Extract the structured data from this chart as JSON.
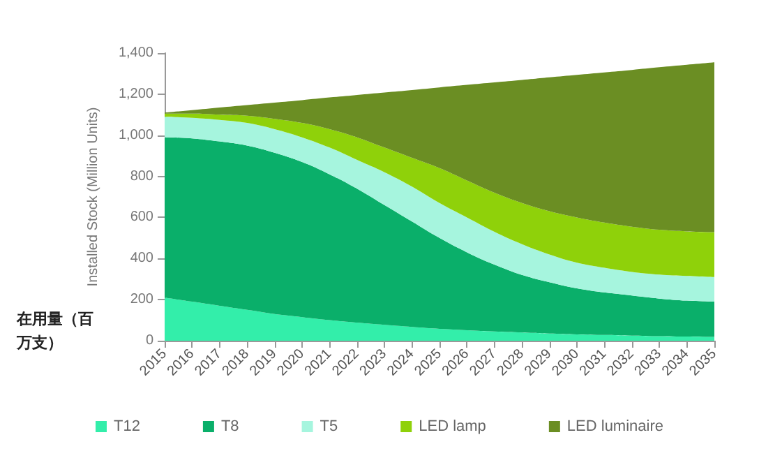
{
  "chart_data": {
    "type": "area",
    "stacked": true,
    "ylabel": "Installed Stock (Million Units)",
    "categories": [
      "2015",
      "2016",
      "2017",
      "2018",
      "2019",
      "2020",
      "2021",
      "2022",
      "2023",
      "2024",
      "2025",
      "2026",
      "2027",
      "2028",
      "2029",
      "2030",
      "2031",
      "2032",
      "2033",
      "2034",
      "2035"
    ],
    "series": [
      {
        "name": "T12",
        "color": "#33eeaa",
        "values": [
          210,
          190,
          170,
          150,
          130,
          115,
          100,
          88,
          77,
          67,
          58,
          51,
          45,
          40,
          35,
          31,
          28,
          25,
          22,
          20,
          18
        ]
      },
      {
        "name": "T8",
        "color": "#0aaf6a",
        "values": [
          780,
          795,
          800,
          800,
          785,
          755,
          710,
          652,
          583,
          513,
          442,
          379,
          325,
          280,
          250,
          224,
          207,
          195,
          183,
          175,
          172
        ]
      },
      {
        "name": "T5",
        "color": "#a6f5de",
        "values": [
          100,
          100,
          105,
          110,
          115,
          120,
          130,
          140,
          160,
          170,
          170,
          170,
          160,
          150,
          135,
          125,
          120,
          115,
          117,
          120,
          120
        ]
      },
      {
        "name": "LED lamp",
        "color": "#8fd10a",
        "values": [
          15,
          20,
          25,
          35,
          50,
          70,
          90,
          110,
          120,
          140,
          170,
          180,
          190,
          200,
          210,
          220,
          220,
          220,
          218,
          217,
          218
        ]
      },
      {
        "name": "LED luminaire",
        "color": "#6b8e23",
        "values": [
          5,
          17,
          35,
          52,
          79,
          111,
          154,
          206,
          268,
          330,
          393,
          465,
          537,
          599,
          652,
          694,
          731,
          763,
          791,
          811,
          827
        ]
      }
    ],
    "ylim": [
      0,
      1400
    ],
    "yticks": [
      0,
      200,
      400,
      600,
      800,
      {
        "value": 1000,
        "label": "1,000"
      },
      {
        "value": 1200,
        "label": "1,200"
      },
      {
        "value": 1400,
        "label": "1,400"
      }
    ],
    "grid": false,
    "legend": "bottom",
    "annotations": [
      {
        "text": "在用量（百万支）"
      }
    ]
  }
}
